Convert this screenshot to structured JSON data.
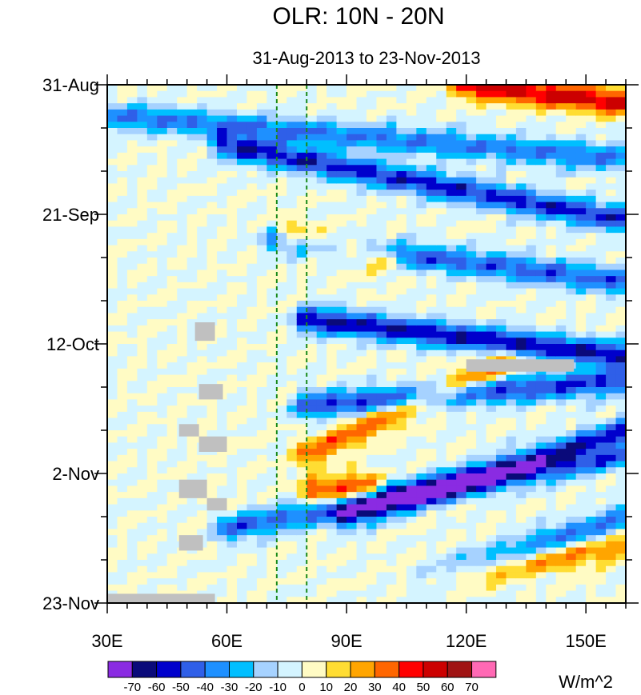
{
  "chart_data": {
    "type": "heatmap",
    "title": "OLR: 10N - 20N",
    "subtitle": "31-Aug-2013 to 23-Nov-2013",
    "xlabel": "",
    "ylabel": "",
    "x_range": [
      30,
      160
    ],
    "x_units": "degrees longitude (E)",
    "x_ticks": [
      {
        "value": 30,
        "label": "30E"
      },
      {
        "value": 60,
        "label": "60E"
      },
      {
        "value": 90,
        "label": "90E"
      },
      {
        "value": 120,
        "label": "120E"
      },
      {
        "value": 150,
        "label": "150E"
      }
    ],
    "y_range_days": [
      0,
      84
    ],
    "y_direction": "time increases downward",
    "y_ticks": [
      {
        "day": 0,
        "label": "31-Aug"
      },
      {
        "day": 21,
        "label": "21-Sep"
      },
      {
        "day": 42,
        "label": "12-Oct"
      },
      {
        "day": 63,
        "label": "2-Nov"
      },
      {
        "day": 84,
        "label": "23-Nov"
      }
    ],
    "reference_lines": [
      {
        "lon": 72.5,
        "style": "dashed",
        "color": "#1a8a1a"
      },
      {
        "lon": 80,
        "style": "dashed",
        "color": "#1a8a1a"
      }
    ],
    "colorbar": {
      "units": "W/m^2",
      "levels": [
        -70,
        -60,
        -50,
        -40,
        -30,
        -20,
        -10,
        0,
        10,
        20,
        30,
        40,
        50,
        60,
        70
      ],
      "level_labels": [
        "-70",
        "-60",
        "-50",
        "-40",
        "-30",
        "-20",
        "-10",
        "0",
        "10",
        "20",
        "30",
        "40",
        "50",
        "60",
        "70"
      ],
      "colors": [
        "#8a2be2",
        "#0a0a7a",
        "#0000cc",
        "#2f5fe8",
        "#1e90ff",
        "#00bfff",
        "#a6d2ff",
        "#d4f4ff",
        "#fffbc4",
        "#ffdd33",
        "#ffa500",
        "#ff6600",
        "#ff0000",
        "#cc0000",
        "#a01414",
        "#ff69b4"
      ]
    },
    "anomaly_features": [
      {
        "lon_start": 30,
        "day_start": 5,
        "lon_end": 160,
        "day_end": 12,
        "value": -40
      },
      {
        "lon_start": 60,
        "day_start": 10,
        "lon_end": 160,
        "day_end": 22,
        "value": -55
      },
      {
        "lon_start": 72,
        "day_start": 25,
        "lon_end": 160,
        "day_end": 32,
        "value": -45
      },
      {
        "lon_start": 80,
        "day_start": 38,
        "lon_end": 160,
        "day_end": 44,
        "value": -60
      },
      {
        "lon_start": 80,
        "day_start": 52,
        "lon_end": 160,
        "day_end": 48,
        "value": -50
      },
      {
        "lon_start": 90,
        "day_start": 70,
        "lon_end": 160,
        "day_end": 56,
        "value": -50
      },
      {
        "lon_start": 60,
        "day_start": 72,
        "lon_end": 160,
        "day_end": 60,
        "value": -45
      },
      {
        "lon_start": 110,
        "day_start": 80,
        "lon_end": 160,
        "day_end": 70,
        "value": -40
      },
      {
        "lon_start": 120,
        "day_start": 0,
        "lon_end": 160,
        "day_end": 3,
        "value": 55
      },
      {
        "lon_start": 75,
        "day_start": 24,
        "lon_end": 100,
        "day_end": 28,
        "value": 40
      },
      {
        "lon_start": 80,
        "day_start": 60,
        "lon_end": 130,
        "day_end": 45,
        "value": 35
      },
      {
        "lon_start": 82,
        "day_start": 66,
        "lon_end": 95,
        "day_end": 65,
        "value": 45
      },
      {
        "lon_start": 110,
        "day_start": 80,
        "lon_end": 160,
        "day_end": 75,
        "value": 30
      }
    ],
    "missing_data_regions": [
      {
        "lon": [
          30,
          57
        ],
        "day": [
          82.5,
          84
        ]
      },
      {
        "lon": [
          120,
          147
        ],
        "day": [
          44.5,
          46.5
        ]
      },
      {
        "lon": [
          52,
          57
        ],
        "day": [
          38.5,
          41.5
        ]
      },
      {
        "lon": [
          53,
          59
        ],
        "day": [
          48.5,
          51
        ]
      },
      {
        "lon": [
          48,
          53
        ],
        "day": [
          55,
          57
        ]
      },
      {
        "lon": [
          53,
          60
        ],
        "day": [
          57,
          59.5
        ]
      },
      {
        "lon": [
          48,
          55
        ],
        "day": [
          64,
          67
        ]
      },
      {
        "lon": [
          55,
          60
        ],
        "day": [
          67,
          69
        ]
      },
      {
        "lon": [
          48,
          54
        ],
        "day": [
          73,
          75.5
        ]
      }
    ]
  }
}
